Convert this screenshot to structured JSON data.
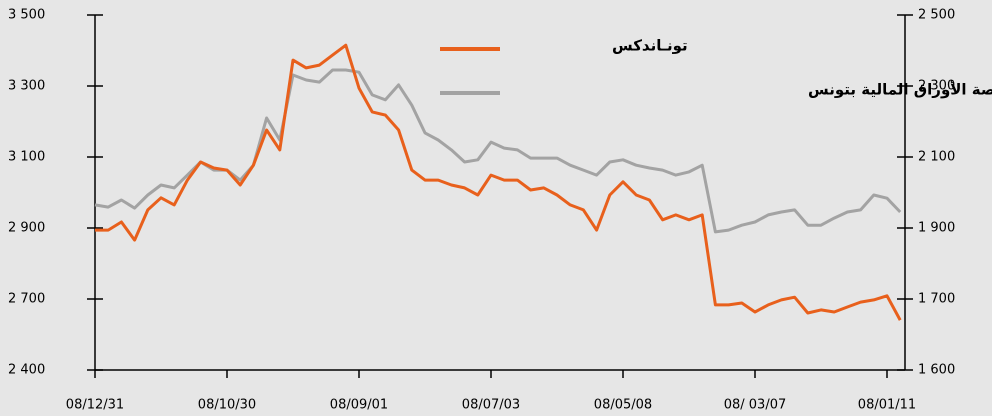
{
  "chart_data": {
    "type": "line",
    "categories": [
      "08/12/31",
      null,
      null,
      null,
      null,
      null,
      null,
      null,
      null,
      null,
      "08/10/30",
      null,
      null,
      null,
      null,
      null,
      null,
      null,
      null,
      null,
      "08/09/01",
      null,
      null,
      null,
      null,
      null,
      null,
      null,
      null,
      null,
      "08/07/03",
      null,
      null,
      null,
      null,
      null,
      null,
      null,
      null,
      null,
      "08/05/08",
      null,
      null,
      null,
      null,
      null,
      null,
      null,
      null,
      null,
      "08/ 03/07",
      null,
      null,
      null,
      null,
      null,
      null,
      null,
      null,
      null,
      "08/01/11",
      null
    ],
    "series": [
      {
        "name": "تونـاندكس",
        "color": "#e8601c",
        "axis": "y",
        "values": [
          2894,
          2894,
          2917,
          2866,
          2951,
          2985,
          2965,
          3035,
          3086,
          3069,
          3063,
          3021,
          3077,
          3176,
          3120,
          3373,
          3351,
          3359,
          3387,
          3415,
          3294,
          3227,
          3218,
          3176,
          3063,
          3035,
          3035,
          3021,
          3013,
          2993,
          3049,
          3035,
          3035,
          3007,
          3013,
          2993,
          2965,
          2951,
          2894,
          2993,
          3030,
          2993,
          2979,
          2923,
          2937,
          2923,
          2937,
          2675,
          2675,
          2683,
          2645,
          2675,
          2696,
          2705,
          2641,
          2654,
          2645,
          2666,
          2687,
          2696,
          2709,
          2611
        ]
      },
      {
        "name": "مؤشر بورصة الأوراق المالية بتونس",
        "color": "#a3a3a3",
        "axis": "y2",
        "values": [
          1965,
          1959,
          1979,
          1956,
          1993,
          2021,
          2013,
          2049,
          2086,
          2063,
          2063,
          2035,
          2077,
          2210,
          2148,
          2331,
          2317,
          2311,
          2345,
          2345,
          2339,
          2275,
          2261,
          2303,
          2246,
          2168,
          2148,
          2120,
          2086,
          2092,
          2142,
          2125,
          2120,
          2097,
          2097,
          2097,
          2077,
          2063,
          2049,
          2086,
          2092,
          2077,
          2069,
          2063,
          2049,
          2058,
          2077,
          1889,
          1894,
          1908,
          1917,
          1937,
          1945,
          1951,
          1908,
          1908,
          1928,
          1945,
          1951,
          1993,
          1984,
          1945
        ]
      }
    ],
    "ylim": [
      2400,
      3500
    ],
    "yticks": [
      {
        "value": 2400,
        "label": "2 400"
      },
      {
        "value": 2700,
        "label": "2 700"
      },
      {
        "value": 2900,
        "label": "2 900"
      },
      {
        "value": 3100,
        "label": "3 100"
      },
      {
        "value": 3300,
        "label": "3 300"
      },
      {
        "value": 3500,
        "label": "3 500"
      }
    ],
    "y2lim": [
      1600,
      2500
    ],
    "y2ticks": [
      {
        "value": 1600,
        "label": "1 600"
      },
      {
        "value": 1700,
        "label": "1 700"
      },
      {
        "value": 1900,
        "label": "1 900"
      },
      {
        "value": 2100,
        "label": "2 100"
      },
      {
        "value": 2300,
        "label": "2 300"
      },
      {
        "value": 2500,
        "label": "2 500"
      }
    ]
  }
}
